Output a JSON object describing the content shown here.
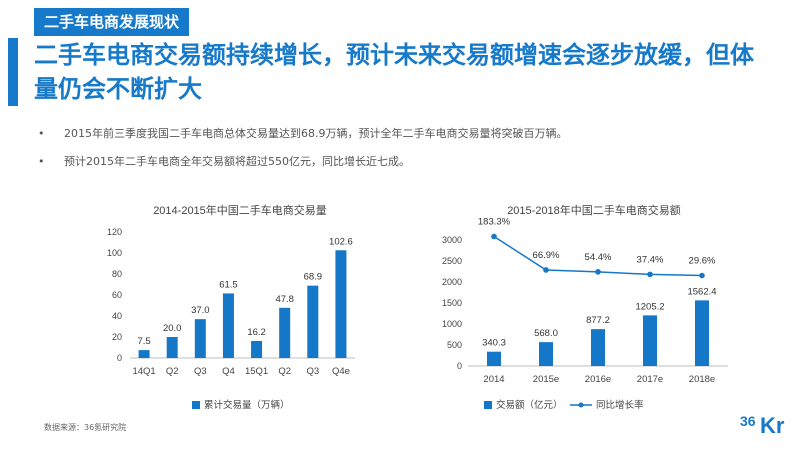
{
  "section_tag": "二手车电商发展现状",
  "headline": "二手车电商交易额持续增长，预计未来交易额增速会逐步放缓，但体量仍会不断扩大",
  "bullets": [
    "2015年前三季度我国二手车电商总体交易量达到68.9万辆，预计全年二手车电商交易量将突破百万辆。",
    "预计2015年二手车电商全年交易额将超过550亿元，同比增长近七成。"
  ],
  "source": "数据来源：36氪研究院",
  "logo": {
    "text_a": "36",
    "text_b": "Kr"
  },
  "colors": {
    "accent": "#1679c9",
    "bar": "#1577c8",
    "line": "#1577c8"
  },
  "chart_data": [
    {
      "type": "bar",
      "title": "2014-2015年中国二手车电商交易量",
      "categories": [
        "14Q1",
        "Q2",
        "Q3",
        "Q4",
        "15Q1",
        "Q2",
        "Q3",
        "Q4e"
      ],
      "values": [
        7.5,
        20.0,
        37.0,
        61.5,
        16.2,
        47.8,
        68.9,
        102.6
      ],
      "value_labels": [
        "7.5",
        "20.0",
        "37.0",
        "61.5",
        "16.2",
        "47.8",
        "68.9",
        "102.6"
      ],
      "yticks": [
        "0",
        "20",
        "40",
        "60",
        "80",
        "100",
        "120"
      ],
      "ylim": [
        0,
        120
      ],
      "legend": [
        "累计交易量（万辆）"
      ],
      "grid": false
    },
    {
      "type": "bar+line",
      "title": "2015-2018年中国二手车电商交易额",
      "categories": [
        "2014",
        "2015e",
        "2016e",
        "2017e",
        "2018e"
      ],
      "values": [
        340.3,
        568.0,
        877.2,
        1205.2,
        1562.4
      ],
      "value_labels": [
        "340.3",
        "568.0",
        "877.2",
        "1205.2",
        "1562.4"
      ],
      "growth": [
        183.3,
        66.9,
        54.4,
        37.4,
        29.6
      ],
      "growth_labels": [
        "183.3%",
        "66.9%",
        "54.4%",
        "37.4%",
        "29.6%"
      ],
      "growth_ylim": [
        0,
        200
      ],
      "yticks": [
        "0",
        "500",
        "1000",
        "1500",
        "2000",
        "2500",
        "3000"
      ],
      "ylim": [
        0,
        3000
      ],
      "legend": [
        "交易额（亿元）",
        "同比增长率"
      ],
      "grid": false
    }
  ]
}
